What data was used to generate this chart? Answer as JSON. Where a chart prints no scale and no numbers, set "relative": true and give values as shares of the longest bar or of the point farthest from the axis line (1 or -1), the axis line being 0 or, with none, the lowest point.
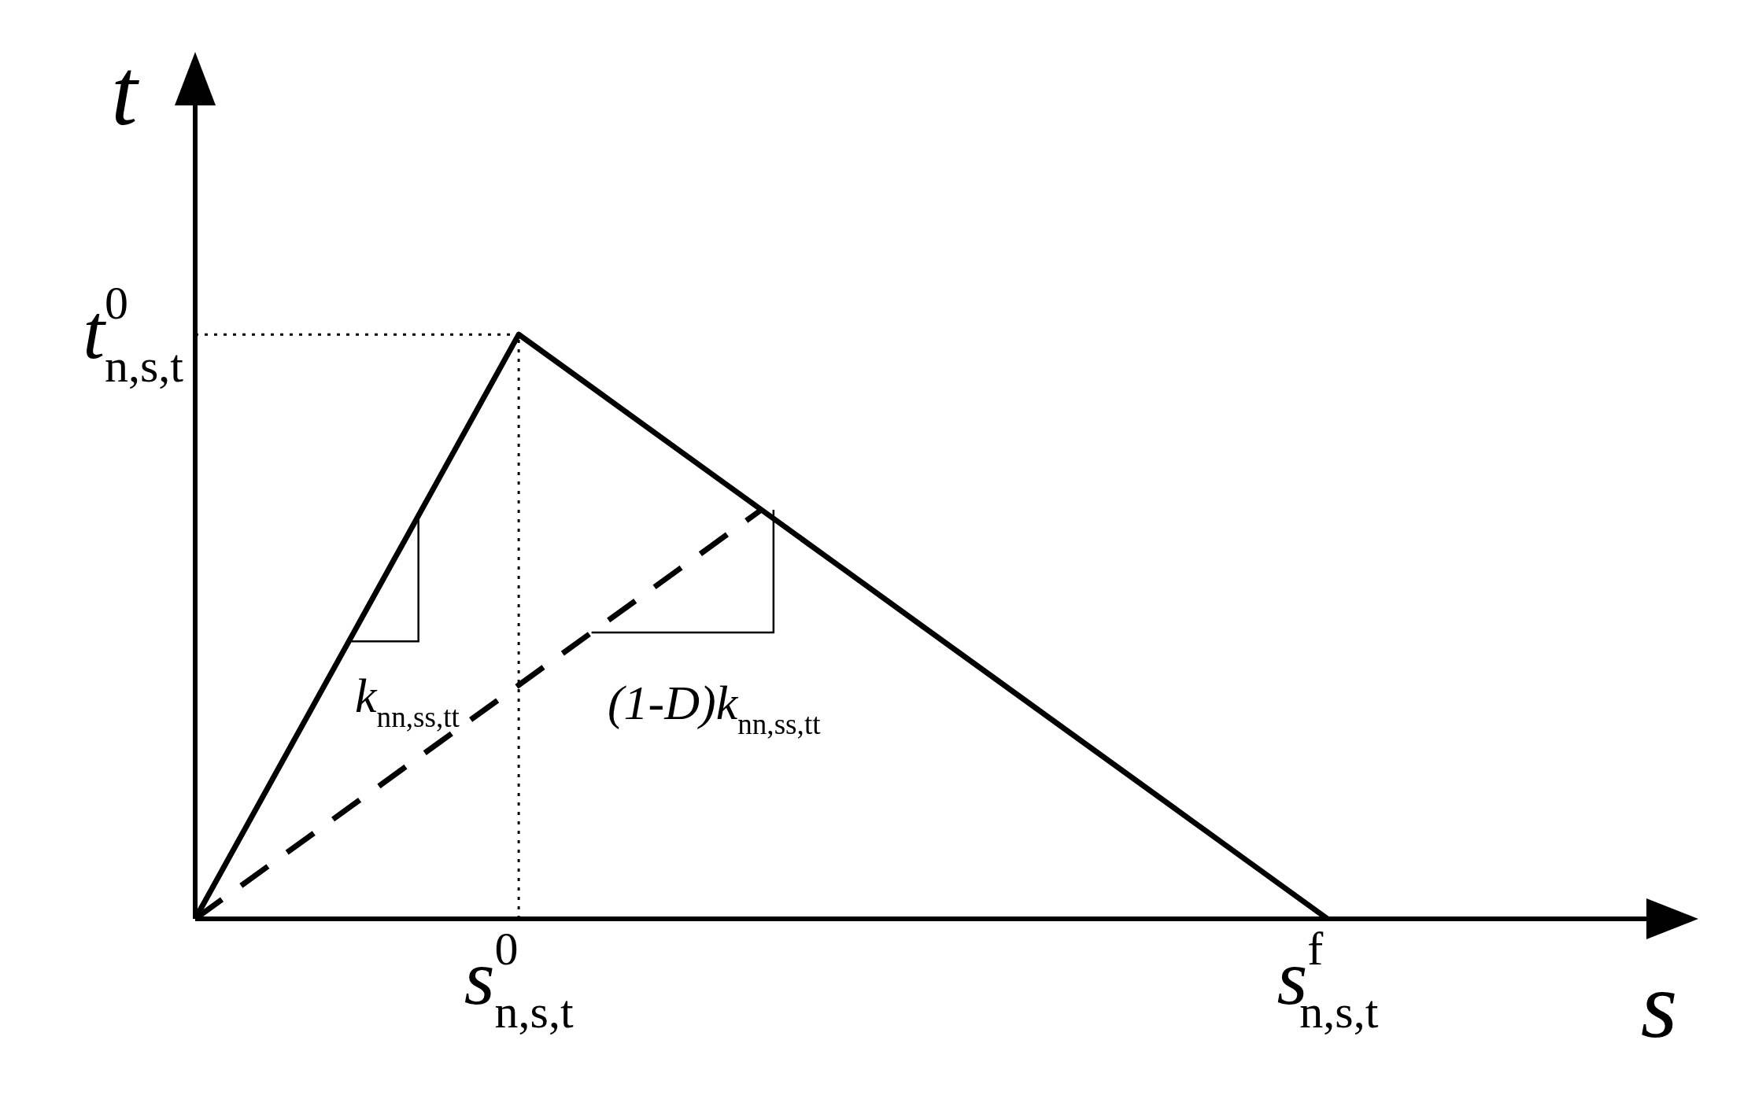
{
  "chart_data": {
    "type": "line",
    "relative": true,
    "xlabel": "s",
    "ylabel": "t",
    "categories": [
      null,
      null,
      null,
      null,
      "s$^{0}$$_{n,s,t}$",
      null,
      null,
      null,
      null,
      null,
      null,
      null,
      null,
      null,
      "s$^{f}$$_{n,s,t}$",
      null,
      null,
      null,
      null
    ],
    "series": [
      {
        "color": "#000000",
        "values": [
          0,
          0.25,
          0.5,
          0.75,
          1,
          0.9,
          0.8,
          0.7,
          0.6,
          0.5,
          0.4,
          0.3,
          0.2,
          0.1,
          0,
          null,
          null,
          null,
          null
        ],
        "line_style": "solid"
      },
      {
        "color": "#000000",
        "values": [
          0,
          0.1,
          0.2,
          0.3,
          0.4,
          0.5,
          0.6,
          0.7,
          null,
          null,
          null,
          null,
          null,
          null,
          null,
          null,
          null,
          null,
          null
        ],
        "line_style": "dashed"
      }
    ],
    "ref_lines": [
      {
        "axis": "y",
        "value": 1,
        "label": "t$^{0}$$_{n,s,t}$",
        "line_style": "dotted"
      },
      {
        "axis": "x",
        "value": "s$^{0}$$_{n,s,t}$",
        "line_style": "dotted"
      }
    ],
    "annotations": [
      "k$_{nn,ss,tt}$",
      "(1-D)k$_{nn,ss,tt}$"
    ]
  }
}
